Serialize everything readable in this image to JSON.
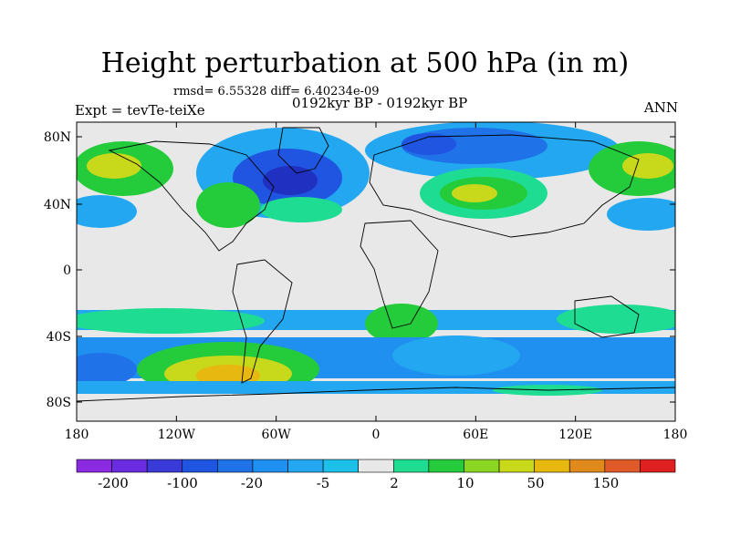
{
  "title": "Height perturbation at 500 hPa (in m)",
  "stats": "rmsd= 6.55328 diff= 6.40234e-09",
  "expt": "Expt = tevTe-teiXe",
  "period": "0192kyr BP - 0192kyr BP",
  "season": "ANN",
  "lat_ticks": [
    "80N",
    "40N",
    "0",
    "40S",
    "80S"
  ],
  "lon_ticks": [
    "180",
    "120W",
    "60W",
    "0",
    "60E",
    "120E",
    "180"
  ],
  "colorbar": {
    "colors": [
      "#8a2be2",
      "#6a2ce0",
      "#3a3ad8",
      "#1f55e0",
      "#2072e8",
      "#1f90f0",
      "#22a7f0",
      "#1cc0e8",
      "#e8e8e8",
      "#1fdc93",
      "#24cc3b",
      "#8ad623",
      "#c8d81a",
      "#e6b810",
      "#e08a1c",
      "#e05a28",
      "#e02020"
    ],
    "labels": [
      "-200",
      "-100",
      "-20",
      "-5",
      "2",
      "10",
      "50",
      "150"
    ]
  }
}
